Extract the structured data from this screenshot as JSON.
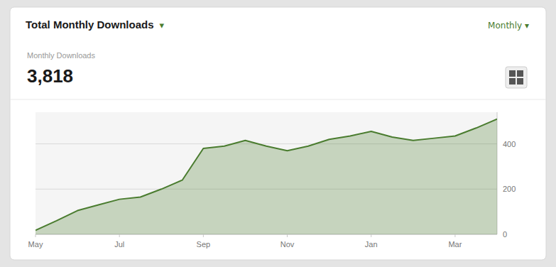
{
  "chart_data": {
    "type": "area",
    "title": "Total Monthly Downloads",
    "subtitle": "Monthly Downloads",
    "annotations": [
      "▾",
      "Monthly ▾",
      "3,818"
    ],
    "x": [
      0,
      0.5,
      1,
      1.5,
      2,
      2.5,
      3,
      3.5,
      4,
      4.5,
      5,
      5.5,
      6,
      6.5,
      7,
      7.5,
      8,
      8.5,
      9,
      9.5,
      10,
      10.5,
      11
    ],
    "values": [
      18,
      60,
      105,
      130,
      155,
      165,
      200,
      240,
      380,
      390,
      415,
      390,
      370,
      390,
      420,
      435,
      455,
      430,
      415,
      425,
      435,
      470,
      510
    ],
    "color": "#4a7c2f",
    "xlim": [
      0,
      11
    ],
    "xticks": [
      {
        "value": 0,
        "label": "May"
      },
      {
        "value": 2,
        "label": "Jul"
      },
      {
        "value": 4,
        "label": "Sep"
      },
      {
        "value": 6,
        "label": "Nov"
      },
      {
        "value": 8,
        "label": "Jan"
      },
      {
        "value": 10,
        "label": "Mar"
      }
    ],
    "ylim": [
      0,
      540
    ],
    "yticks": [
      0,
      200,
      400
    ],
    "grid": true
  }
}
